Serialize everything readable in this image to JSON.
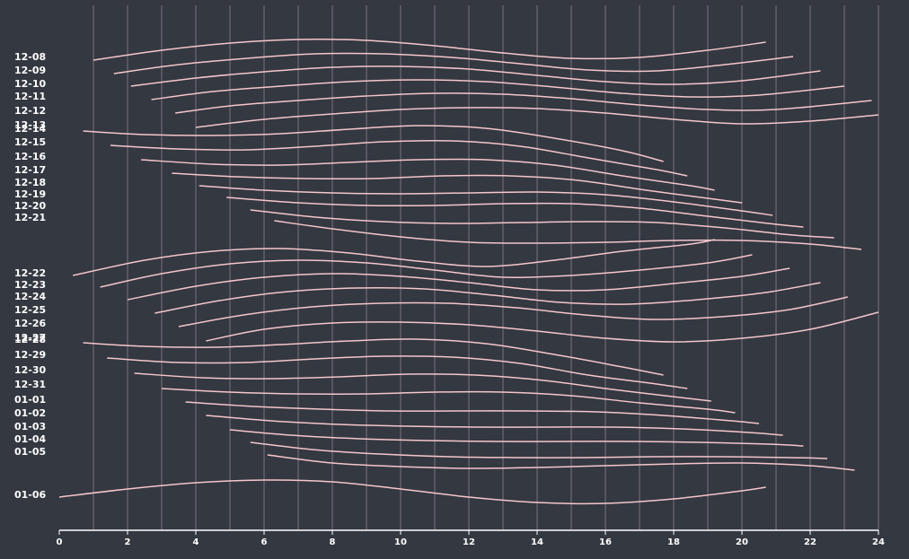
{
  "chart_data": {
    "type": "line",
    "colors": {
      "background": "#343841",
      "line": "#f4c6cc",
      "grid": "#6e6975",
      "text": "#ffffff"
    },
    "x_ticks": [
      0,
      2,
      4,
      6,
      8,
      10,
      12,
      14,
      16,
      18,
      20,
      22,
      24
    ],
    "xlim": [
      0,
      24
    ],
    "grid_x": [
      0,
      1,
      2,
      3,
      4,
      5,
      6,
      7,
      8,
      9,
      10,
      11,
      12,
      13,
      14,
      15,
      16,
      17,
      18,
      19,
      20,
      21,
      22,
      23,
      24
    ],
    "y_labels": [
      "12-08",
      "12-09",
      "12-10",
      "12-11",
      "12-12",
      "12-13",
      "12-14",
      "12-15",
      "12-16",
      "12-17",
      "12-18",
      "12-19",
      "12-20",
      "12-21",
      "12-22",
      "12-23",
      "12-24",
      "12-25",
      "12-26",
      "12-27",
      "12-28",
      "12-29",
      "12-30",
      "12-31",
      "01-01",
      "01-02",
      "01-03",
      "01-04",
      "01-05",
      "01-06"
    ],
    "series": [
      {
        "x": [
          1.0,
          3.0,
          5.0,
          7.0,
          9.0,
          11.0,
          13.0,
          15.0,
          17.0,
          19.0,
          20.7
        ],
        "y": [
          67,
          56,
          48,
          44,
          45,
          51,
          59,
          65,
          64,
          56,
          47
        ]
      },
      {
        "x": [
          1.6,
          3.5,
          5.5,
          7.5,
          9.5,
          11.5,
          13.5,
          15.5,
          17.5,
          19.5,
          21.5
        ],
        "y": [
          82,
          72,
          65,
          60,
          60,
          64,
          71,
          78,
          79,
          72,
          63
        ]
      },
      {
        "x": [
          2.1,
          4.0,
          6.0,
          8.0,
          10.0,
          12.0,
          14.0,
          16.0,
          18.0,
          20.0,
          22.3
        ],
        "y": [
          96,
          87,
          80,
          75,
          74,
          77,
          84,
          91,
          94,
          90,
          79
        ]
      },
      {
        "x": [
          2.7,
          4.5,
          6.5,
          8.5,
          10.5,
          12.5,
          14.5,
          16.5,
          18.5,
          20.5,
          23.0
        ],
        "y": [
          111,
          102,
          96,
          91,
          89,
          91,
          97,
          104,
          108,
          106,
          96
        ]
      },
      {
        "x": [
          3.4,
          5.0,
          7.0,
          9.0,
          11.0,
          13.0,
          15.0,
          17.0,
          19.0,
          21.0,
          23.8
        ],
        "y": [
          126,
          118,
          112,
          107,
          104,
          105,
          110,
          117,
          122,
          122,
          112
        ]
      },
      {
        "x": [
          4.0,
          6.0,
          8.0,
          10.0,
          12.0,
          14.0,
          16.0,
          18.0,
          20.0,
          22.0,
          24.0
        ],
        "y": [
          142,
          133,
          127,
          122,
          120,
          121,
          126,
          133,
          138,
          135,
          128
        ]
      },
      {
        "x": [
          0.7,
          2.5,
          4.5,
          6.5,
          8.5,
          10.5,
          12.5,
          14.5,
          16.5,
          17.7
        ],
        "y": [
          146,
          150,
          151,
          149,
          144,
          140,
          143,
          154,
          168,
          180
        ]
      },
      {
        "x": [
          1.5,
          3.5,
          5.5,
          7.5,
          9.5,
          11.5,
          13.5,
          15.5,
          17.5,
          18.4
        ],
        "y": [
          162,
          166,
          167,
          163,
          158,
          157,
          163,
          176,
          189,
          196
        ]
      },
      {
        "x": [
          2.4,
          4.5,
          6.5,
          8.5,
          10.5,
          12.5,
          14.5,
          16.5,
          18.5,
          19.2
        ],
        "y": [
          178,
          183,
          184,
          181,
          178,
          178,
          184,
          196,
          207,
          212
        ]
      },
      {
        "x": [
          3.3,
          5.2,
          7.2,
          9.2,
          11.2,
          13.2,
          15.2,
          17.2,
          19.2,
          20.0
        ],
        "y": [
          193,
          197,
          199,
          199,
          196,
          196,
          201,
          212,
          222,
          226
        ]
      },
      {
        "x": [
          4.1,
          6.0,
          8.0,
          10.0,
          12.0,
          14.0,
          16.0,
          18.0,
          20.0,
          20.9
        ],
        "y": [
          207,
          212,
          215,
          216,
          215,
          214,
          217,
          225,
          235,
          240
        ]
      },
      {
        "x": [
          4.9,
          7.0,
          9.0,
          11.0,
          13.0,
          15.0,
          17.0,
          19.0,
          21.0,
          21.8
        ],
        "y": [
          220,
          226,
          229,
          229,
          227,
          227,
          232,
          241,
          250,
          253
        ]
      },
      {
        "x": [
          5.6,
          7.5,
          9.5,
          11.5,
          13.5,
          15.5,
          17.5,
          19.5,
          21.5,
          22.7
        ],
        "y": [
          234,
          242,
          247,
          249,
          248,
          247,
          248,
          254,
          262,
          265
        ]
      },
      {
        "x": [
          6.3,
          8.0,
          10.0,
          12.0,
          14.0,
          16.0,
          18.0,
          20.0,
          22.0,
          23.5
        ],
        "y": [
          246,
          255,
          264,
          270,
          271,
          270,
          268,
          268,
          272,
          278
        ]
      },
      {
        "x": [
          0.4,
          2.5,
          4.5,
          6.5,
          8.5,
          10.5,
          12.5,
          14.5,
          16.5,
          18.5,
          19.2
        ],
        "y": [
          307,
          290,
          280,
          277,
          282,
          291,
          297,
          290,
          280,
          272,
          267
        ]
      },
      {
        "x": [
          1.2,
          3.0,
          5.0,
          7.0,
          9.0,
          11.0,
          13.0,
          15.0,
          17.0,
          19.0,
          20.3
        ],
        "y": [
          320,
          305,
          294,
          290,
          293,
          301,
          309,
          307,
          301,
          293,
          284
        ]
      },
      {
        "x": [
          2.0,
          4.0,
          6.0,
          8.0,
          10.0,
          12.0,
          14.0,
          16.0,
          18.0,
          20.0,
          21.4
        ],
        "y": [
          334,
          319,
          309,
          305,
          308,
          315,
          323,
          323,
          316,
          308,
          299
        ]
      },
      {
        "x": [
          2.8,
          4.7,
          6.7,
          8.7,
          10.7,
          12.7,
          14.7,
          16.7,
          18.7,
          20.7,
          22.3
        ],
        "y": [
          349,
          335,
          325,
          321,
          322,
          329,
          337,
          339,
          334,
          326,
          315
        ]
      },
      {
        "x": [
          3.5,
          5.4,
          7.4,
          9.4,
          11.4,
          13.4,
          15.4,
          17.4,
          19.4,
          21.4,
          23.1
        ],
        "y": [
          364,
          351,
          342,
          338,
          338,
          343,
          351,
          356,
          353,
          345,
          331
        ]
      },
      {
        "x": [
          4.3,
          6.0,
          8.0,
          10.0,
          12.0,
          14.0,
          16.0,
          18.0,
          20.0,
          22.0,
          24.0
        ],
        "y": [
          380,
          367,
          360,
          359,
          362,
          369,
          377,
          381,
          377,
          367,
          348
        ]
      },
      {
        "x": [
          0.7,
          2.5,
          4.5,
          6.5,
          8.5,
          10.5,
          12.5,
          14.5,
          16.5,
          17.7
        ],
        "y": [
          382,
          386,
          387,
          384,
          380,
          378,
          383,
          395,
          409,
          418
        ]
      },
      {
        "x": [
          1.4,
          3.5,
          5.5,
          7.5,
          9.5,
          11.5,
          13.5,
          15.5,
          17.5,
          18.4
        ],
        "y": [
          399,
          404,
          404,
          400,
          397,
          398,
          405,
          418,
          428,
          433
        ]
      },
      {
        "x": [
          2.2,
          4.2,
          6.2,
          8.2,
          10.2,
          12.2,
          14.2,
          16.2,
          18.2,
          19.1
        ],
        "y": [
          416,
          421,
          422,
          420,
          417,
          418,
          424,
          434,
          443,
          447
        ]
      },
      {
        "x": [
          3.0,
          5.0,
          7.0,
          9.0,
          11.0,
          13.0,
          15.0,
          17.0,
          19.0,
          19.8
        ],
        "y": [
          433,
          437,
          439,
          439,
          437,
          437,
          441,
          449,
          456,
          460
        ]
      },
      {
        "x": [
          3.7,
          5.7,
          7.7,
          9.7,
          11.7,
          13.7,
          15.7,
          17.7,
          19.7,
          20.5
        ],
        "y": [
          448,
          453,
          456,
          458,
          458,
          458,
          459,
          463,
          469,
          472
        ]
      },
      {
        "x": [
          4.3,
          6.2,
          8.2,
          10.2,
          12.2,
          14.2,
          16.2,
          18.2,
          20.2,
          21.2
        ],
        "y": [
          463,
          469,
          473,
          475,
          476,
          476,
          476,
          478,
          482,
          485
        ]
      },
      {
        "x": [
          5.0,
          6.8,
          8.8,
          10.8,
          12.8,
          14.8,
          16.8,
          18.8,
          20.8,
          21.8
        ],
        "y": [
          479,
          485,
          489,
          491,
          492,
          492,
          492,
          493,
          495,
          497
        ]
      },
      {
        "x": [
          5.6,
          7.4,
          9.4,
          11.4,
          13.4,
          15.4,
          17.4,
          19.4,
          21.4,
          22.5
        ],
        "y": [
          493,
          501,
          506,
          509,
          510,
          510,
          509,
          509,
          510,
          511
        ]
      },
      {
        "x": [
          6.1,
          8.0,
          10.0,
          12.0,
          14.0,
          16.0,
          18.0,
          20.0,
          22.0,
          23.3
        ],
        "y": [
          507,
          516,
          520,
          522,
          521,
          519,
          517,
          516,
          519,
          524
        ]
      },
      {
        "x": [
          0.0,
          2.0,
          4.0,
          6.0,
          8.0,
          10.0,
          12.0,
          14.0,
          16.0,
          18.0,
          20.0,
          20.7
        ],
        "y": [
          554,
          545,
          538,
          535,
          537,
          545,
          554,
          560,
          561,
          556,
          547,
          543
        ]
      }
    ]
  }
}
